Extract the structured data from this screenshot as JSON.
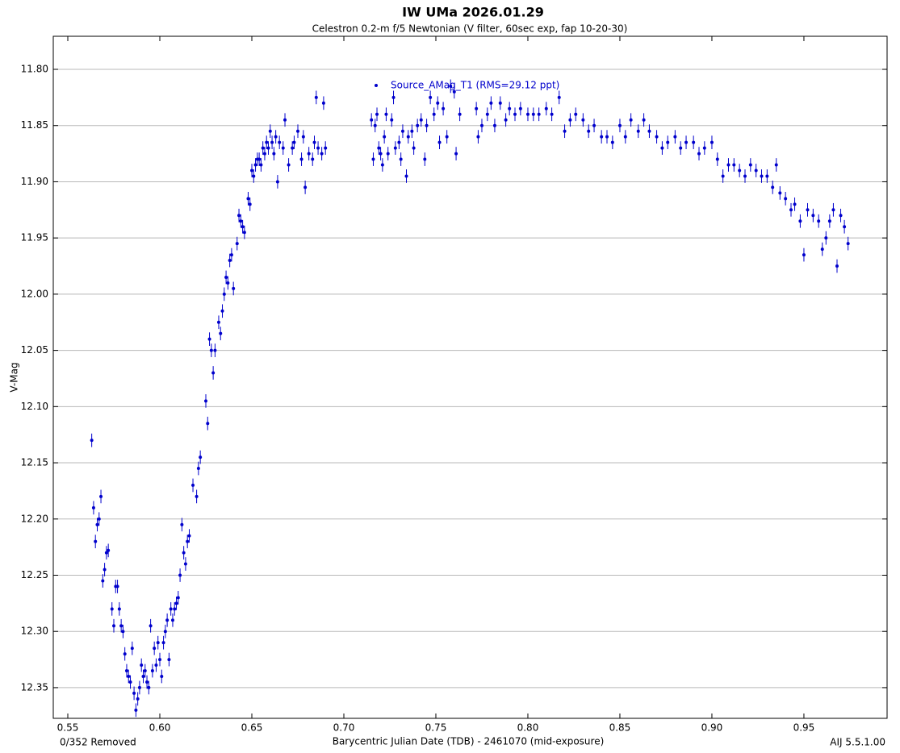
{
  "chart_data": {
    "type": "scatter",
    "title": "IW UMa 2026.01.29",
    "subtitle": "Celestron 0.2-m f/5 Newtonian (V filter, 60sec exp, fap 10-20-30)",
    "x_label": "Barycentric Julian Date (TDB) - 2461070 (mid-exposure)",
    "y_label": "V-Mag",
    "footer_left": "0/352 Removed",
    "footer_right": "AIJ 5.5.1.00",
    "legend": "top",
    "grid": true,
    "xlim": [
      0.5421,
      0.9952
    ],
    "ylim": [
      12.3773,
      11.7706
    ],
    "xticks": [
      {
        "value": 0.55,
        "label": "0.55"
      },
      {
        "value": 0.6,
        "label": "0.60"
      },
      {
        "value": 0.65,
        "label": "0.65"
      },
      {
        "value": 0.7,
        "label": "0.70"
      },
      {
        "value": 0.75,
        "label": "0.75"
      },
      {
        "value": 0.8,
        "label": "0.80"
      },
      {
        "value": 0.85,
        "label": "0.85"
      },
      {
        "value": 0.9,
        "label": "0.90"
      },
      {
        "value": 0.95,
        "label": "0.95"
      }
    ],
    "yticks": [
      {
        "value": 11.8,
        "label": "11.80"
      },
      {
        "value": 11.85,
        "label": "11.85"
      },
      {
        "value": 11.9,
        "label": "11.90"
      },
      {
        "value": 11.95,
        "label": "11.95"
      },
      {
        "value": 12,
        "label": "12.00"
      },
      {
        "value": 12.05,
        "label": "12.05"
      },
      {
        "value": 12.1,
        "label": "12.10"
      },
      {
        "value": 12.15,
        "label": "12.15"
      },
      {
        "value": 12.2,
        "label": "12.20"
      },
      {
        "value": 12.25,
        "label": "12.25"
      },
      {
        "value": 12.3,
        "label": "12.30"
      },
      {
        "value": 12.35,
        "label": "12.35"
      }
    ],
    "series": [
      {
        "name": "Source_AMag_T1 (RMS=29.12 ppt)",
        "color": "#0000cc",
        "yerr": 0.006,
        "x": [
          0.563,
          0.564,
          0.565,
          0.566,
          0.567,
          0.568,
          0.569,
          0.57,
          0.571,
          0.572,
          0.574,
          0.575,
          0.576,
          0.577,
          0.578,
          0.579,
          0.58,
          0.581,
          0.582,
          0.583,
          0.584,
          0.585,
          0.586,
          0.587,
          0.588,
          0.589,
          0.59,
          0.591,
          0.592,
          0.593,
          0.594,
          0.595,
          0.596,
          0.597,
          0.598,
          0.599,
          0.6,
          0.601,
          0.602,
          0.603,
          0.604,
          0.605,
          0.606,
          0.607,
          0.608,
          0.609,
          0.61,
          0.611,
          0.612,
          0.613,
          0.614,
          0.615,
          0.616,
          0.618,
          0.62,
          0.621,
          0.622,
          0.625,
          0.626,
          0.627,
          0.628,
          0.629,
          0.63,
          0.632,
          0.633,
          0.634,
          0.635,
          0.636,
          0.637,
          0.638,
          0.639,
          0.64,
          0.642,
          0.643,
          0.644,
          0.645,
          0.646,
          0.648,
          0.649,
          0.65,
          0.651,
          0.652,
          0.653,
          0.654,
          0.655,
          0.656,
          0.657,
          0.658,
          0.659,
          0.66,
          0.661,
          0.662,
          0.663,
          0.664,
          0.665,
          0.667,
          0.668,
          0.67,
          0.672,
          0.673,
          0.675,
          0.677,
          0.678,
          0.679,
          0.681,
          0.683,
          0.684,
          0.685,
          0.686,
          0.688,
          0.689,
          0.69,
          0.715,
          0.716,
          0.717,
          0.718,
          0.719,
          0.72,
          0.721,
          0.722,
          0.723,
          0.724,
          0.726,
          0.727,
          0.728,
          0.73,
          0.731,
          0.732,
          0.734,
          0.735,
          0.737,
          0.738,
          0.74,
          0.742,
          0.744,
          0.745,
          0.747,
          0.749,
          0.751,
          0.752,
          0.754,
          0.756,
          0.758,
          0.76,
          0.761,
          0.763,
          0.772,
          0.773,
          0.775,
          0.778,
          0.78,
          0.782,
          0.785,
          0.788,
          0.79,
          0.793,
          0.796,
          0.8,
          0.803,
          0.806,
          0.81,
          0.813,
          0.817,
          0.82,
          0.823,
          0.826,
          0.83,
          0.833,
          0.836,
          0.84,
          0.843,
          0.846,
          0.85,
          0.853,
          0.856,
          0.86,
          0.863,
          0.866,
          0.87,
          0.873,
          0.876,
          0.88,
          0.883,
          0.886,
          0.89,
          0.893,
          0.896,
          0.9,
          0.903,
          0.906,
          0.909,
          0.912,
          0.915,
          0.918,
          0.921,
          0.924,
          0.927,
          0.93,
          0.933,
          0.935,
          0.937,
          0.94,
          0.943,
          0.945,
          0.948,
          0.95,
          0.952,
          0.955,
          0.958,
          0.96,
          0.962,
          0.964,
          0.966,
          0.968,
          0.97,
          0.972,
          0.974
        ],
        "values": [
          12.13,
          12.19,
          12.22,
          12.205,
          12.2,
          12.18,
          12.255,
          12.245,
          12.23,
          12.228,
          12.28,
          12.295,
          12.26,
          12.26,
          12.28,
          12.295,
          12.3,
          12.32,
          12.335,
          12.34,
          12.345,
          12.315,
          12.355,
          12.37,
          12.36,
          12.35,
          12.33,
          12.34,
          12.335,
          12.345,
          12.35,
          12.295,
          12.335,
          12.315,
          12.33,
          12.31,
          12.325,
          12.34,
          12.31,
          12.3,
          12.29,
          12.325,
          12.28,
          12.29,
          12.28,
          12.275,
          12.27,
          12.25,
          12.205,
          12.23,
          12.24,
          12.22,
          12.215,
          12.17,
          12.18,
          12.155,
          12.145,
          12.095,
          12.115,
          12.04,
          12.05,
          12.07,
          12.05,
          12.025,
          12.035,
          12.015,
          12.0,
          11.985,
          11.99,
          11.97,
          11.965,
          11.995,
          11.955,
          11.93,
          11.935,
          11.94,
          11.945,
          11.915,
          11.92,
          11.89,
          11.895,
          11.885,
          11.88,
          11.88,
          11.885,
          11.87,
          11.875,
          11.865,
          11.87,
          11.855,
          11.865,
          11.875,
          11.86,
          11.9,
          11.865,
          11.87,
          11.845,
          11.885,
          11.87,
          11.865,
          11.855,
          11.88,
          11.86,
          11.905,
          11.875,
          11.88,
          11.865,
          11.825,
          11.87,
          11.875,
          11.83,
          11.87,
          11.845,
          11.88,
          11.85,
          11.84,
          11.87,
          11.875,
          11.885,
          11.86,
          11.84,
          11.875,
          11.845,
          11.825,
          11.87,
          11.865,
          11.88,
          11.855,
          11.895,
          11.86,
          11.855,
          11.87,
          11.85,
          11.845,
          11.88,
          11.85,
          11.825,
          11.84,
          11.83,
          11.865,
          11.835,
          11.86,
          11.815,
          11.82,
          11.875,
          11.84,
          11.835,
          11.86,
          11.85,
          11.84,
          11.83,
          11.85,
          11.83,
          11.845,
          11.835,
          11.84,
          11.835,
          11.84,
          11.84,
          11.84,
          11.835,
          11.84,
          11.825,
          11.855,
          11.845,
          11.84,
          11.845,
          11.855,
          11.85,
          11.86,
          11.86,
          11.865,
          11.85,
          11.86,
          11.845,
          11.855,
          11.845,
          11.855,
          11.86,
          11.87,
          11.865,
          11.86,
          11.87,
          11.865,
          11.865,
          11.875,
          11.87,
          11.865,
          11.88,
          11.895,
          11.885,
          11.885,
          11.89,
          11.895,
          11.885,
          11.89,
          11.895,
          11.895,
          11.905,
          11.885,
          11.91,
          11.915,
          11.925,
          11.92,
          11.935,
          11.965,
          11.925,
          11.93,
          11.935,
          11.96,
          11.95,
          11.935,
          11.925,
          11.975,
          11.93,
          11.94,
          11.955
        ]
      }
    ]
  }
}
